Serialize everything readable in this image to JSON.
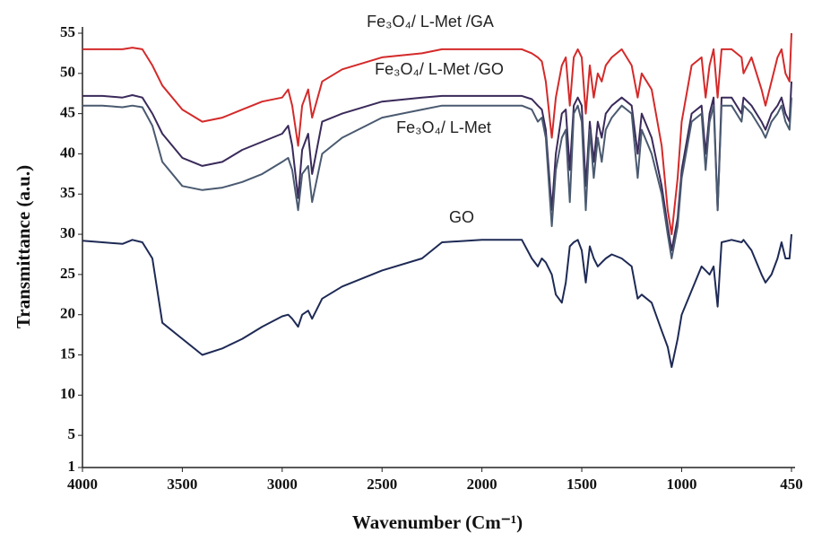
{
  "chart_data": {
    "type": "line",
    "xlabel": "Wavenumber (Cm⁻¹)",
    "ylabel": "Transmittance (a.u.)",
    "x": [
      4000,
      3900,
      3800,
      3750,
      3700,
      3650,
      3600,
      3500,
      3400,
      3300,
      3200,
      3100,
      3000,
      2970,
      2950,
      2920,
      2900,
      2870,
      2850,
      2800,
      2700,
      2500,
      2300,
      2200,
      2000,
      1800,
      1750,
      1720,
      1700,
      1680,
      1650,
      1630,
      1600,
      1580,
      1560,
      1540,
      1520,
      1500,
      1480,
      1460,
      1440,
      1420,
      1400,
      1380,
      1350,
      1300,
      1250,
      1220,
      1200,
      1150,
      1100,
      1070,
      1050,
      1020,
      1000,
      950,
      900,
      880,
      860,
      840,
      820,
      800,
      750,
      700,
      690,
      650,
      600,
      580,
      550,
      520,
      500,
      480,
      460,
      450
    ],
    "series": [
      {
        "name": "Fe₃O₄/ L-Met /GA",
        "color": "#d42a2a",
        "values": [
          53,
          53,
          53,
          53.2,
          53,
          51,
          48.5,
          45.5,
          44,
          44.5,
          45.5,
          46.5,
          47,
          48,
          46,
          41,
          46,
          48,
          44.5,
          49,
          50.5,
          52,
          52.5,
          53,
          53,
          53,
          52.5,
          52,
          51.5,
          49,
          42,
          47,
          51,
          52,
          46,
          52,
          53,
          52,
          45,
          51,
          47,
          50,
          49,
          51,
          52,
          53,
          51,
          47,
          50,
          48,
          41,
          33,
          30,
          37,
          44,
          51,
          52,
          47,
          51,
          53,
          47,
          53,
          53,
          52,
          50,
          52,
          48,
          46,
          49,
          52,
          53,
          50,
          49,
          55
        ]
      },
      {
        "name": "Fe₃O₄/ L-Met /GO",
        "color": "#3a2a5a",
        "values": [
          47.2,
          47.2,
          47,
          47.3,
          47,
          45,
          42.5,
          39.5,
          38.5,
          39,
          40.5,
          41.5,
          42.5,
          43.5,
          41,
          34.5,
          40.5,
          42.5,
          37.5,
          44,
          45,
          46.5,
          47,
          47.2,
          47.2,
          47.2,
          46.8,
          46,
          45.5,
          43,
          33,
          40,
          45,
          45.5,
          38,
          46,
          47,
          46,
          36,
          44,
          39,
          44,
          42,
          45,
          46,
          47,
          46,
          40,
          45,
          42,
          36,
          31,
          28,
          32,
          38,
          45,
          46,
          40,
          45,
          47,
          33,
          47,
          47,
          45,
          47,
          46,
          44,
          43,
          45,
          46,
          47,
          45,
          44,
          49
        ]
      },
      {
        "name": "Fe₃O₄/ L-Met",
        "color": "#4a5a70",
        "values": [
          46,
          46,
          45.8,
          46,
          45.8,
          43.5,
          39,
          36,
          35.5,
          35.8,
          36.5,
          37.5,
          39,
          39.5,
          38,
          33,
          37.5,
          38.5,
          34,
          40,
          42,
          44.5,
          45.5,
          46,
          46,
          46,
          45.5,
          44,
          44.5,
          42,
          31,
          38,
          42,
          43,
          34,
          45,
          46,
          44,
          33,
          43,
          37,
          42,
          39,
          43,
          44.5,
          46,
          45,
          37,
          43,
          40,
          35,
          30,
          27,
          31,
          37,
          44,
          45,
          38,
          44,
          46,
          33,
          46,
          46,
          44,
          46,
          45,
          43,
          42,
          44,
          45,
          46,
          44,
          43,
          47
        ]
      },
      {
        "name": "GO",
        "color": "#1e2a55",
        "values": [
          29.2,
          29,
          28.8,
          29.3,
          29,
          27,
          19,
          17,
          15,
          15.8,
          17,
          18.5,
          19.8,
          20,
          19.5,
          18.5,
          20,
          20.5,
          19.5,
          22,
          23.5,
          25.5,
          27,
          29,
          29.3,
          29.3,
          27,
          26,
          27,
          26.5,
          25,
          22.5,
          21.5,
          24,
          28.5,
          29,
          29.3,
          28,
          24,
          28.5,
          27,
          26,
          26.5,
          27,
          27.5,
          27,
          26,
          22,
          22.5,
          21.5,
          18,
          16,
          13.5,
          17,
          20,
          23,
          26,
          25.5,
          25,
          26,
          21,
          29,
          29.3,
          29,
          29.3,
          28,
          25,
          24,
          25,
          27,
          29,
          27,
          27,
          30
        ]
      }
    ],
    "xlim": [
      4000,
      450
    ],
    "xticks": [
      4000,
      3500,
      3000,
      2500,
      2000,
      1500,
      1000,
      450
    ],
    "ylim": [
      1,
      55
    ],
    "yticks": [
      1,
      5,
      10,
      15,
      20,
      25,
      30,
      35,
      40,
      45,
      50,
      55
    ]
  }
}
